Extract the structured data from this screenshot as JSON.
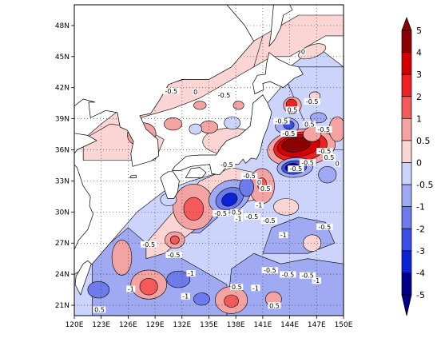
{
  "map": {
    "lon_ticks": [
      "120E",
      "123E",
      "126E",
      "129E",
      "132E",
      "135E",
      "138E",
      "141E",
      "144E",
      "147E",
      "150E"
    ],
    "lat_ticks": [
      "21N",
      "24N",
      "27N",
      "30N",
      "33N",
      "36N",
      "39N",
      "42N",
      "45N",
      "48N"
    ],
    "lon_range": [
      120,
      150
    ],
    "lat_range": [
      20,
      50
    ],
    "grid": "dotted"
  },
  "colorbar": {
    "orientation": "vertical",
    "placement": "right",
    "levels": [
      "5",
      "4",
      "3",
      "2",
      "1",
      "0.5",
      "0",
      "-0.5",
      "-1",
      "-2",
      "-3",
      "-4",
      "-5"
    ],
    "colors": [
      "#8b0000",
      "#d40000",
      "#ee2020",
      "#f55a5a",
      "#f4a3a3",
      "#fbd4d4",
      "#ffffff",
      "#ccd4fb",
      "#9faaf2",
      "#6d7bec",
      "#3b4fe6",
      "#0a23d6",
      "#00008b"
    ]
  },
  "contour_labels": [
    {
      "text": "-0.5",
      "lon": 136.7,
      "lat": 41.2
    },
    {
      "text": "-0.5",
      "lon": 130.8,
      "lat": 41.6
    },
    {
      "text": "0",
      "lon": 133.5,
      "lat": 41.5
    },
    {
      "text": "0",
      "lon": 145.5,
      "lat": 45.4
    },
    {
      "text": "-0.5",
      "lon": 143.9,
      "lat": 37.5
    },
    {
      "text": "0.5",
      "lon": 144.3,
      "lat": 39.8
    },
    {
      "text": "-0.5",
      "lon": 146.5,
      "lat": 40.6
    },
    {
      "text": "0.5",
      "lon": 146.2,
      "lat": 38.4
    },
    {
      "text": "-0.5",
      "lon": 147.8,
      "lat": 37.9
    },
    {
      "text": "-0.5",
      "lon": 143.1,
      "lat": 38.7
    },
    {
      "text": "-0.5",
      "lon": 147.9,
      "lat": 35.8
    },
    {
      "text": "0.5",
      "lon": 148.4,
      "lat": 35.2
    },
    {
      "text": "-0.5",
      "lon": 146.0,
      "lat": 34.7
    },
    {
      "text": "-0.5",
      "lon": 144.7,
      "lat": 34.1
    },
    {
      "text": "0",
      "lon": 149.3,
      "lat": 34.6
    },
    {
      "text": "-0.5",
      "lon": 137.0,
      "lat": 34.5
    },
    {
      "text": "-0.5",
      "lon": 139.5,
      "lat": 33.4
    },
    {
      "text": "0",
      "lon": 140.6,
      "lat": 32.8
    },
    {
      "text": "-1",
      "lon": 140.6,
      "lat": 30.6
    },
    {
      "text": "0.5",
      "lon": 141.3,
      "lat": 32.2
    },
    {
      "text": "0.5",
      "lon": 138.1,
      "lat": 29.9
    },
    {
      "text": "-0.5",
      "lon": 136.3,
      "lat": 29.8
    },
    {
      "text": "-1",
      "lon": 138.3,
      "lat": 29.3
    },
    {
      "text": "-0.5",
      "lon": 139.8,
      "lat": 29.5
    },
    {
      "text": "-0.5",
      "lon": 141.7,
      "lat": 29.1
    },
    {
      "text": "-1",
      "lon": 143.3,
      "lat": 27.7
    },
    {
      "text": "-0.5",
      "lon": 131.1,
      "lat": 25.8
    },
    {
      "text": "-0.5",
      "lon": 128.3,
      "lat": 26.8
    },
    {
      "text": "-0.5",
      "lon": 147.9,
      "lat": 28.5
    },
    {
      "text": "-1",
      "lon": 133.0,
      "lat": 24.0
    },
    {
      "text": "-1",
      "lon": 126.3,
      "lat": 22.5
    },
    {
      "text": "-1",
      "lon": 132.4,
      "lat": 21.8
    },
    {
      "text": "-1",
      "lon": 140.2,
      "lat": 22.6
    },
    {
      "text": "-0.5",
      "lon": 141.8,
      "lat": 24.3
    },
    {
      "text": "-0.5",
      "lon": 143.8,
      "lat": 23.9
    },
    {
      "text": "-0.5",
      "lon": 146.0,
      "lat": 23.8
    },
    {
      "text": "-1",
      "lon": 147.0,
      "lat": 23.3
    },
    {
      "text": "0.5",
      "lon": 142.3,
      "lat": 20.9
    },
    {
      "text": "0.5",
      "lon": 122.8,
      "lat": 20.5
    },
    {
      "text": "0.5",
      "lon": 138.1,
      "lat": 22.7
    }
  ]
}
